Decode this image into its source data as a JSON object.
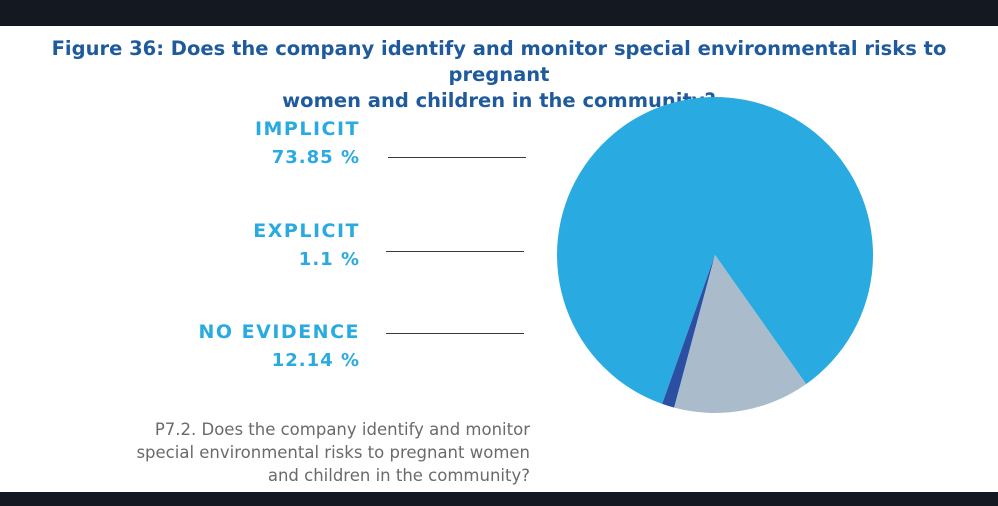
{
  "title": {
    "line1": "Figure 36: Does the company identify and monitor special environmental risks to pregnant",
    "line2": "women and children in the community?"
  },
  "caption": {
    "line1": "P7.2. Does the company identify and monitor",
    "line2": "special environmental risks to pregnant women",
    "line3": "and children in the community?"
  },
  "legend": [
    {
      "label": "IMPLICIT",
      "value_text": "73.85 %"
    },
    {
      "label": "EXPLICIT",
      "value_text": "1.1 %"
    },
    {
      "label": "NO EVIDENCE",
      "value_text": "12.14 %"
    }
  ],
  "colors": {
    "implicit": "#29aae1",
    "explicit": "#2b4fa3",
    "no_evidence": "#aabccb",
    "title": "#1f5b9c",
    "legend_text": "#29aae1"
  },
  "chart_data": {
    "type": "pie",
    "title": "Figure 36: Does the company identify and monitor special environmental risks to pregnant women and children in the community?",
    "slices": [
      {
        "label": "IMPLICIT",
        "value": 73.85
      },
      {
        "label": "EXPLICIT",
        "value": 1.1
      },
      {
        "label": "NO EVIDENCE",
        "value": 12.14
      }
    ]
  }
}
